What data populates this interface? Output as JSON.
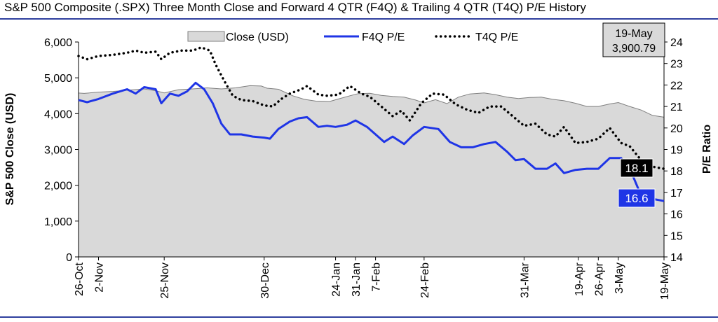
{
  "title": "S&P 500 Composite (.SPX) Three Month Close and Forward 4 QTR (F4Q) & Trailing 4 QTR (T4Q) P/E History",
  "colors": {
    "close_fill": "#d9d9d9",
    "close_line": "#7f7f7f",
    "f4q": "#1f35e6",
    "t4q": "#000000",
    "rule": "#2f3f9e",
    "f4q_label_bg": "#1f35e6",
    "t4q_label_bg": "#000000"
  },
  "chart_data": {
    "type": "area",
    "title": "S&P 500 Composite (.SPX) Three Month Close and Forward 4 QTR (F4Q) & Trailing 4 QTR (T4Q) P/E History",
    "ylabel_left": "S&P 500 Close (USD)",
    "ylabel_right": "P/E Ratio",
    "ylim_left": [
      0,
      6000
    ],
    "ylim_right": [
      14,
      24
    ],
    "yticks_left": [
      "0",
      "1,000",
      "2,000",
      "3,000",
      "4,000",
      "5,000",
      "6,000"
    ],
    "yticks_right": [
      "14",
      "15",
      "16",
      "17",
      "18",
      "19",
      "20",
      "21",
      "22",
      "23",
      "24"
    ],
    "x_start": "26-Oct",
    "x_end": "19-May",
    "xticks": [
      {
        "label": "26-Oct",
        "day": 0
      },
      {
        "label": "2-Nov",
        "day": 7
      },
      {
        "label": "25-Nov",
        "day": 30
      },
      {
        "label": "30-Dec",
        "day": 65
      },
      {
        "label": "24-Jan",
        "day": 90
      },
      {
        "label": "31-Jan",
        "day": 97
      },
      {
        "label": "7-Feb",
        "day": 104
      },
      {
        "label": "24-Feb",
        "day": 121
      },
      {
        "label": "31-Mar",
        "day": 156
      },
      {
        "label": "19-Apr",
        "day": 175
      },
      {
        "label": "26-Apr",
        "day": 182
      },
      {
        "label": "3-May",
        "day": 189
      },
      {
        "label": "19-May",
        "day": 205
      }
    ],
    "grid": false,
    "legend_position": "top",
    "series": [
      {
        "name": "Close (USD)",
        "kind": "area",
        "axis": "left",
        "points": [
          [
            0,
            4575
          ],
          [
            2,
            4565
          ],
          [
            7,
            4600
          ],
          [
            12,
            4620
          ],
          [
            19,
            4665
          ],
          [
            23,
            4690
          ],
          [
            27,
            4640
          ],
          [
            30,
            4580
          ],
          [
            35,
            4670
          ],
          [
            40,
            4690
          ],
          [
            45,
            4720
          ],
          [
            50,
            4690
          ],
          [
            55,
            4720
          ],
          [
            60,
            4780
          ],
          [
            64,
            4770
          ],
          [
            66,
            4710
          ],
          [
            70,
            4680
          ],
          [
            75,
            4500
          ],
          [
            79,
            4400
          ],
          [
            83,
            4350
          ],
          [
            88,
            4340
          ],
          [
            91,
            4410
          ],
          [
            95,
            4500
          ],
          [
            98,
            4560
          ],
          [
            102,
            4570
          ],
          [
            106,
            4510
          ],
          [
            110,
            4480
          ],
          [
            114,
            4460
          ],
          [
            118,
            4380
          ],
          [
            121,
            4300
          ],
          [
            125,
            4390
          ],
          [
            129,
            4280
          ],
          [
            133,
            4460
          ],
          [
            137,
            4550
          ],
          [
            142,
            4580
          ],
          [
            146,
            4530
          ],
          [
            150,
            4460
          ],
          [
            154,
            4420
          ],
          [
            158,
            4450
          ],
          [
            162,
            4460
          ],
          [
            166,
            4400
          ],
          [
            170,
            4360
          ],
          [
            174,
            4290
          ],
          [
            178,
            4200
          ],
          [
            182,
            4200
          ],
          [
            186,
            4270
          ],
          [
            189,
            4310
          ],
          [
            193,
            4200
          ],
          [
            197,
            4100
          ],
          [
            201,
            3950
          ],
          [
            205,
            3900
          ]
        ]
      },
      {
        "name": "F4Q P/E",
        "kind": "line",
        "axis": "right",
        "points": [
          [
            0,
            21.3
          ],
          [
            3,
            21.2
          ],
          [
            7,
            21.35
          ],
          [
            12,
            21.6
          ],
          [
            17,
            21.8
          ],
          [
            20,
            21.6
          ],
          [
            23,
            21.9
          ],
          [
            27,
            21.8
          ],
          [
            29,
            21.15
          ],
          [
            32,
            21.6
          ],
          [
            35,
            21.5
          ],
          [
            38,
            21.7
          ],
          [
            41,
            22.1
          ],
          [
            44,
            21.8
          ],
          [
            47,
            21.15
          ],
          [
            50,
            20.2
          ],
          [
            53,
            19.7
          ],
          [
            57,
            19.7
          ],
          [
            61,
            19.6
          ],
          [
            65,
            19.55
          ],
          [
            67,
            19.5
          ],
          [
            70,
            19.95
          ],
          [
            74,
            20.3
          ],
          [
            77,
            20.45
          ],
          [
            80,
            20.5
          ],
          [
            84,
            20.05
          ],
          [
            87,
            20.1
          ],
          [
            90,
            20.05
          ],
          [
            94,
            20.15
          ],
          [
            97,
            20.35
          ],
          [
            101,
            20.05
          ],
          [
            104,
            19.7
          ],
          [
            107,
            19.35
          ],
          [
            110,
            19.6
          ],
          [
            114,
            19.25
          ],
          [
            117,
            19.65
          ],
          [
            121,
            20.05
          ],
          [
            126,
            19.95
          ],
          [
            130,
            19.35
          ],
          [
            134,
            19.1
          ],
          [
            138,
            19.1
          ],
          [
            142,
            19.25
          ],
          [
            146,
            19.35
          ],
          [
            150,
            18.9
          ],
          [
            153,
            18.5
          ],
          [
            156,
            18.55
          ],
          [
            160,
            18.1
          ],
          [
            164,
            18.1
          ],
          [
            167,
            18.35
          ],
          [
            170,
            17.9
          ],
          [
            174,
            18.05
          ],
          [
            178,
            18.1
          ],
          [
            182,
            18.1
          ],
          [
            186,
            18.6
          ],
          [
            190,
            18.6
          ],
          [
            194,
            17.8
          ],
          [
            197,
            16.85
          ],
          [
            201,
            16.7
          ],
          [
            205,
            16.6
          ]
        ]
      },
      {
        "name": "T4Q P/E",
        "kind": "dotted",
        "axis": "right",
        "points": [
          [
            0,
            23.35
          ],
          [
            3,
            23.2
          ],
          [
            7,
            23.35
          ],
          [
            12,
            23.4
          ],
          [
            17,
            23.5
          ],
          [
            20,
            23.6
          ],
          [
            23,
            23.5
          ],
          [
            27,
            23.55
          ],
          [
            29,
            23.2
          ],
          [
            32,
            23.5
          ],
          [
            36,
            23.6
          ],
          [
            40,
            23.6
          ],
          [
            43,
            23.75
          ],
          [
            46,
            23.6
          ],
          [
            48,
            22.95
          ],
          [
            51,
            22.2
          ],
          [
            54,
            21.5
          ],
          [
            57,
            21.3
          ],
          [
            61,
            21.25
          ],
          [
            65,
            21.05
          ],
          [
            68,
            21.0
          ],
          [
            71,
            21.35
          ],
          [
            74,
            21.6
          ],
          [
            78,
            21.8
          ],
          [
            80,
            21.95
          ],
          [
            84,
            21.55
          ],
          [
            87,
            21.5
          ],
          [
            91,
            21.55
          ],
          [
            95,
            21.95
          ],
          [
            99,
            21.6
          ],
          [
            102,
            21.45
          ],
          [
            106,
            21.0
          ],
          [
            110,
            20.55
          ],
          [
            113,
            20.8
          ],
          [
            116,
            20.35
          ],
          [
            120,
            21.15
          ],
          [
            124,
            21.6
          ],
          [
            128,
            21.55
          ],
          [
            132,
            21.1
          ],
          [
            136,
            20.85
          ],
          [
            140,
            20.7
          ],
          [
            144,
            21.0
          ],
          [
            148,
            21.0
          ],
          [
            152,
            20.55
          ],
          [
            156,
            20.1
          ],
          [
            160,
            20.2
          ],
          [
            164,
            19.7
          ],
          [
            167,
            19.6
          ],
          [
            170,
            20.05
          ],
          [
            174,
            19.3
          ],
          [
            178,
            19.35
          ],
          [
            182,
            19.5
          ],
          [
            186,
            20.0
          ],
          [
            190,
            19.3
          ],
          [
            193,
            19.15
          ],
          [
            197,
            18.5
          ],
          [
            201,
            18.2
          ],
          [
            205,
            18.1
          ]
        ]
      }
    ],
    "annotations": {
      "date_box": "19-May",
      "close_box": "3,900.79",
      "f4q_label": "16.6",
      "t4q_label": "18.1"
    }
  }
}
